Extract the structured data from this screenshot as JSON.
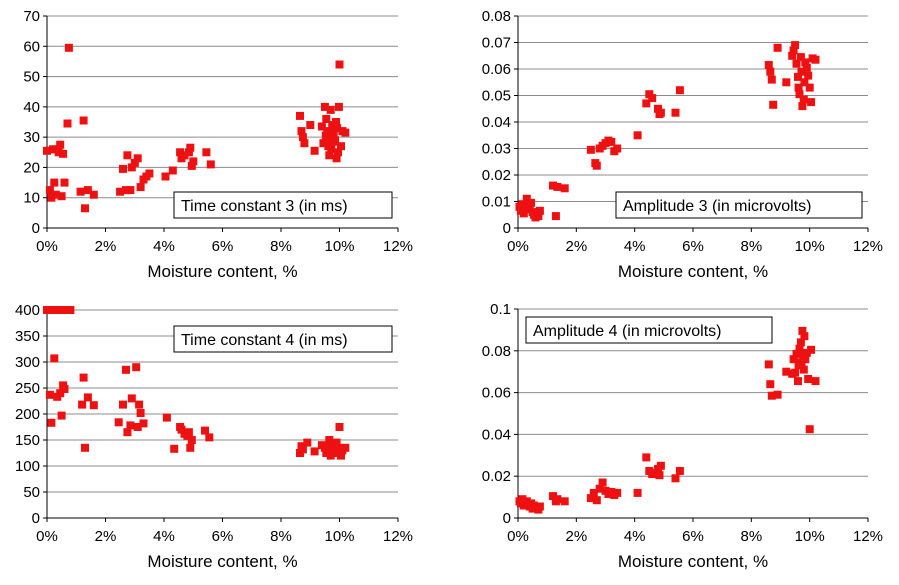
{
  "colors": {
    "marker": "#ee1111",
    "grid": "#8c8c8c",
    "axis": "#000000"
  },
  "chart_data": [
    {
      "type": "scatter",
      "annotation": "Time constant 3 (in ms)",
      "annotation_position": "bottom-right",
      "xlabel": "Moisture content, %",
      "xlim": [
        0,
        12
      ],
      "ylim": [
        0,
        70
      ],
      "xticks": [
        "0%",
        "2%",
        "4%",
        "6%",
        "8%",
        "10%",
        "12%"
      ],
      "yticks": [
        "0",
        "10",
        "20",
        "30",
        "40",
        "50",
        "60",
        "70"
      ],
      "grid": true,
      "points": [
        [
          0.0,
          25.5
        ],
        [
          0.1,
          12.5
        ],
        [
          0.15,
          10
        ],
        [
          0.2,
          26
        ],
        [
          0.25,
          15
        ],
        [
          0.3,
          11
        ],
        [
          0.35,
          26
        ],
        [
          0.4,
          25
        ],
        [
          0.45,
          27.5
        ],
        [
          0.5,
          10.5
        ],
        [
          0.55,
          24.5
        ],
        [
          0.6,
          15
        ],
        [
          0.7,
          34.5
        ],
        [
          0.75,
          59.5
        ],
        [
          1.15,
          12
        ],
        [
          1.25,
          35.5
        ],
        [
          1.3,
          6.5
        ],
        [
          1.4,
          12.5
        ],
        [
          1.6,
          11
        ],
        [
          2.5,
          12
        ],
        [
          2.6,
          19.5
        ],
        [
          2.7,
          12.5
        ],
        [
          2.75,
          24
        ],
        [
          2.85,
          12.5
        ],
        [
          2.9,
          20
        ],
        [
          3.0,
          21.5
        ],
        [
          3.1,
          23
        ],
        [
          3.2,
          13.5
        ],
        [
          3.3,
          16
        ],
        [
          3.4,
          17
        ],
        [
          3.5,
          18
        ],
        [
          4.05,
          17
        ],
        [
          4.3,
          19
        ],
        [
          4.55,
          25
        ],
        [
          4.6,
          23
        ],
        [
          4.7,
          24
        ],
        [
          4.85,
          25
        ],
        [
          4.9,
          26.5
        ],
        [
          4.95,
          20.5
        ],
        [
          5.0,
          22
        ],
        [
          5.45,
          25
        ],
        [
          5.6,
          21
        ],
        [
          8.65,
          37
        ],
        [
          8.7,
          32
        ],
        [
          8.75,
          30
        ],
        [
          8.8,
          28
        ],
        [
          9.0,
          34
        ],
        [
          9.15,
          25.5
        ],
        [
          9.4,
          33.5
        ],
        [
          9.5,
          40
        ],
        [
          9.55,
          36
        ],
        [
          9.6,
          30
        ],
        [
          9.62,
          27
        ],
        [
          9.65,
          24
        ],
        [
          9.7,
          39
        ],
        [
          9.75,
          34
        ],
        [
          9.8,
          31.5
        ],
        [
          9.85,
          29
        ],
        [
          9.9,
          23
        ],
        [
          9.95,
          25
        ],
        [
          10.0,
          54
        ],
        [
          10.05,
          27
        ],
        [
          10.1,
          32
        ],
        [
          10.2,
          31.5
        ],
        [
          9.45,
          28
        ],
        [
          9.58,
          32
        ],
        [
          9.72,
          26
        ],
        [
          9.78,
          28.5
        ],
        [
          9.88,
          35
        ],
        [
          9.92,
          33
        ],
        [
          9.53,
          30.5
        ],
        [
          9.68,
          29.5
        ],
        [
          9.98,
          40
        ]
      ]
    },
    {
      "type": "scatter",
      "annotation": "Amplitude 3 (in microvolts)",
      "annotation_position": "bottom-right",
      "xlabel": "Moisture content, %",
      "xlim": [
        0,
        12
      ],
      "ylim": [
        0,
        0.08
      ],
      "xticks": [
        "0%",
        "2%",
        "4%",
        "6%",
        "8%",
        "10%",
        "12%"
      ],
      "yticks": [
        "0",
        "0.01",
        "0.02",
        "0.03",
        "0.04",
        "0.05",
        "0.06",
        "0.07",
        "0.08"
      ],
      "grid": true,
      "points": [
        [
          0.05,
          0.008
        ],
        [
          0.1,
          0.0065
        ],
        [
          0.15,
          0.009
        ],
        [
          0.2,
          0.0055
        ],
        [
          0.25,
          0.007
        ],
        [
          0.3,
          0.011
        ],
        [
          0.35,
          0.0085
        ],
        [
          0.4,
          0.0075
        ],
        [
          0.45,
          0.0095
        ],
        [
          0.5,
          0.006
        ],
        [
          0.55,
          0.005
        ],
        [
          0.6,
          0.004
        ],
        [
          0.7,
          0.0045
        ],
        [
          0.75,
          0.0065
        ],
        [
          1.2,
          0.016
        ],
        [
          1.3,
          0.0045
        ],
        [
          1.35,
          0.0155
        ],
        [
          1.6,
          0.015
        ],
        [
          2.5,
          0.0295
        ],
        [
          2.65,
          0.0245
        ],
        [
          2.7,
          0.0235
        ],
        [
          2.8,
          0.03
        ],
        [
          2.9,
          0.031
        ],
        [
          3.0,
          0.032
        ],
        [
          3.1,
          0.033
        ],
        [
          3.2,
          0.0325
        ],
        [
          3.3,
          0.029
        ],
        [
          3.4,
          0.03
        ],
        [
          4.1,
          0.035
        ],
        [
          4.4,
          0.047
        ],
        [
          4.5,
          0.0505
        ],
        [
          4.6,
          0.049
        ],
        [
          4.8,
          0.045
        ],
        [
          4.85,
          0.043
        ],
        [
          4.9,
          0.0435
        ],
        [
          5.4,
          0.0435
        ],
        [
          5.55,
          0.052
        ],
        [
          8.6,
          0.0615
        ],
        [
          8.65,
          0.059
        ],
        [
          8.7,
          0.056
        ],
        [
          8.75,
          0.0465
        ],
        [
          8.9,
          0.068
        ],
        [
          9.2,
          0.055
        ],
        [
          9.4,
          0.065
        ],
        [
          9.45,
          0.067
        ],
        [
          9.5,
          0.069
        ],
        [
          9.55,
          0.062
        ],
        [
          9.6,
          0.057
        ],
        [
          9.62,
          0.053
        ],
        [
          9.65,
          0.0505
        ],
        [
          9.7,
          0.0645
        ],
        [
          9.75,
          0.046
        ],
        [
          9.8,
          0.0485
        ],
        [
          9.85,
          0.0625
        ],
        [
          9.9,
          0.0605
        ],
        [
          9.95,
          0.0575
        ],
        [
          10.0,
          0.053
        ],
        [
          10.05,
          0.0475
        ],
        [
          10.1,
          0.064
        ],
        [
          10.2,
          0.0635
        ],
        [
          9.72,
          0.059
        ],
        [
          9.82,
          0.055
        ]
      ]
    },
    {
      "type": "scatter",
      "annotation": "Time constant 4 (in ms)",
      "annotation_position": "top-right",
      "xlabel": "Moisture content, %",
      "xlim": [
        0,
        12
      ],
      "ylim": [
        0,
        400
      ],
      "xticks": [
        "0%",
        "2%",
        "4%",
        "6%",
        "8%",
        "10%",
        "12%"
      ],
      "yticks": [
        "0",
        "50",
        "100",
        "150",
        "200",
        "250",
        "300",
        "350",
        "400"
      ],
      "grid": true,
      "points": [
        [
          0.0,
          400
        ],
        [
          0.05,
          400
        ],
        [
          0.1,
          400
        ],
        [
          0.15,
          400
        ],
        [
          0.2,
          400
        ],
        [
          0.25,
          400
        ],
        [
          0.3,
          400
        ],
        [
          0.35,
          400
        ],
        [
          0.4,
          400
        ],
        [
          0.45,
          400
        ],
        [
          0.5,
          400
        ],
        [
          0.55,
          400
        ],
        [
          0.6,
          400
        ],
        [
          0.65,
          400
        ],
        [
          0.7,
          400
        ],
        [
          0.75,
          400
        ],
        [
          0.8,
          400
        ],
        [
          0.1,
          237
        ],
        [
          0.15,
          183
        ],
        [
          0.25,
          307
        ],
        [
          0.35,
          233
        ],
        [
          0.45,
          240
        ],
        [
          0.5,
          197
        ],
        [
          0.55,
          255
        ],
        [
          0.6,
          248
        ],
        [
          1.2,
          218
        ],
        [
          1.25,
          270
        ],
        [
          1.3,
          135
        ],
        [
          1.4,
          232
        ],
        [
          1.6,
          217
        ],
        [
          2.45,
          184
        ],
        [
          2.6,
          218
        ],
        [
          2.7,
          285
        ],
        [
          2.75,
          165
        ],
        [
          2.85,
          178
        ],
        [
          2.9,
          230
        ],
        [
          3.05,
          290
        ],
        [
          3.1,
          175
        ],
        [
          3.15,
          218
        ],
        [
          3.2,
          202
        ],
        [
          3.3,
          182
        ],
        [
          4.1,
          193
        ],
        [
          4.35,
          133
        ],
        [
          4.55,
          175
        ],
        [
          4.6,
          170
        ],
        [
          4.7,
          162
        ],
        [
          4.8,
          158
        ],
        [
          4.85,
          165
        ],
        [
          4.9,
          135
        ],
        [
          4.95,
          150
        ],
        [
          5.4,
          168
        ],
        [
          5.55,
          155
        ],
        [
          8.65,
          125
        ],
        [
          8.7,
          138
        ],
        [
          8.75,
          132
        ],
        [
          8.9,
          145
        ],
        [
          9.15,
          128
        ],
        [
          9.4,
          140
        ],
        [
          9.5,
          135
        ],
        [
          9.55,
          125
        ],
        [
          9.6,
          130
        ],
        [
          9.65,
          150
        ],
        [
          9.7,
          120
        ],
        [
          9.75,
          140
        ],
        [
          9.8,
          130
        ],
        [
          9.85,
          125
        ],
        [
          9.9,
          145
        ],
        [
          9.95,
          135
        ],
        [
          10.0,
          175
        ],
        [
          10.05,
          120
        ],
        [
          10.1,
          130
        ],
        [
          10.2,
          135
        ]
      ]
    },
    {
      "type": "scatter",
      "annotation": "Amplitude 4 (in microvolts)",
      "annotation_position": "top-left",
      "xlabel": "Moisture content, %",
      "xlim": [
        0,
        12
      ],
      "ylim": [
        0,
        0.1
      ],
      "xticks": [
        "0%",
        "2%",
        "4%",
        "6%",
        "8%",
        "10%",
        "12%"
      ],
      "yticks": [
        "0",
        "0.02",
        "0.04",
        "0.06",
        "0.08",
        "0.1"
      ],
      "grid": true,
      "points": [
        [
          0.05,
          0.008
        ],
        [
          0.1,
          0.007
        ],
        [
          0.15,
          0.009
        ],
        [
          0.2,
          0.006
        ],
        [
          0.25,
          0.0075
        ],
        [
          0.3,
          0.008
        ],
        [
          0.35,
          0.0065
        ],
        [
          0.4,
          0.0055
        ],
        [
          0.45,
          0.007
        ],
        [
          0.5,
          0.0045
        ],
        [
          0.55,
          0.006
        ],
        [
          0.6,
          0.005
        ],
        [
          0.7,
          0.004
        ],
        [
          0.75,
          0.0055
        ],
        [
          1.2,
          0.0105
        ],
        [
          1.3,
          0.008
        ],
        [
          1.35,
          0.009
        ],
        [
          1.6,
          0.008
        ],
        [
          2.5,
          0.0095
        ],
        [
          2.6,
          0.012
        ],
        [
          2.7,
          0.0085
        ],
        [
          2.8,
          0.014
        ],
        [
          2.9,
          0.017
        ],
        [
          3.0,
          0.013
        ],
        [
          3.1,
          0.0115
        ],
        [
          3.2,
          0.0125
        ],
        [
          3.3,
          0.011
        ],
        [
          3.4,
          0.012
        ],
        [
          4.1,
          0.012
        ],
        [
          4.4,
          0.029
        ],
        [
          4.5,
          0.0225
        ],
        [
          4.6,
          0.021
        ],
        [
          4.7,
          0.0215
        ],
        [
          4.8,
          0.0235
        ],
        [
          4.85,
          0.0205
        ],
        [
          4.9,
          0.025
        ],
        [
          5.4,
          0.019
        ],
        [
          5.55,
          0.0225
        ],
        [
          8.6,
          0.0735
        ],
        [
          8.65,
          0.064
        ],
        [
          8.7,
          0.0585
        ],
        [
          8.9,
          0.059
        ],
        [
          9.2,
          0.07
        ],
        [
          9.4,
          0.069
        ],
        [
          9.45,
          0.076
        ],
        [
          9.5,
          0.0695
        ],
        [
          9.55,
          0.0785
        ],
        [
          9.6,
          0.0655
        ],
        [
          9.65,
          0.081
        ],
        [
          9.7,
          0.084
        ],
        [
          9.75,
          0.0895
        ],
        [
          9.8,
          0.071
        ],
        [
          9.85,
          0.076
        ],
        [
          9.9,
          0.079
        ],
        [
          9.95,
          0.0665
        ],
        [
          10.0,
          0.0425
        ],
        [
          10.05,
          0.0805
        ],
        [
          10.2,
          0.0655
        ],
        [
          9.72,
          0.0745
        ],
        [
          9.82,
          0.087
        ],
        [
          9.62,
          0.073
        ],
        [
          9.78,
          0.078
        ]
      ]
    }
  ]
}
